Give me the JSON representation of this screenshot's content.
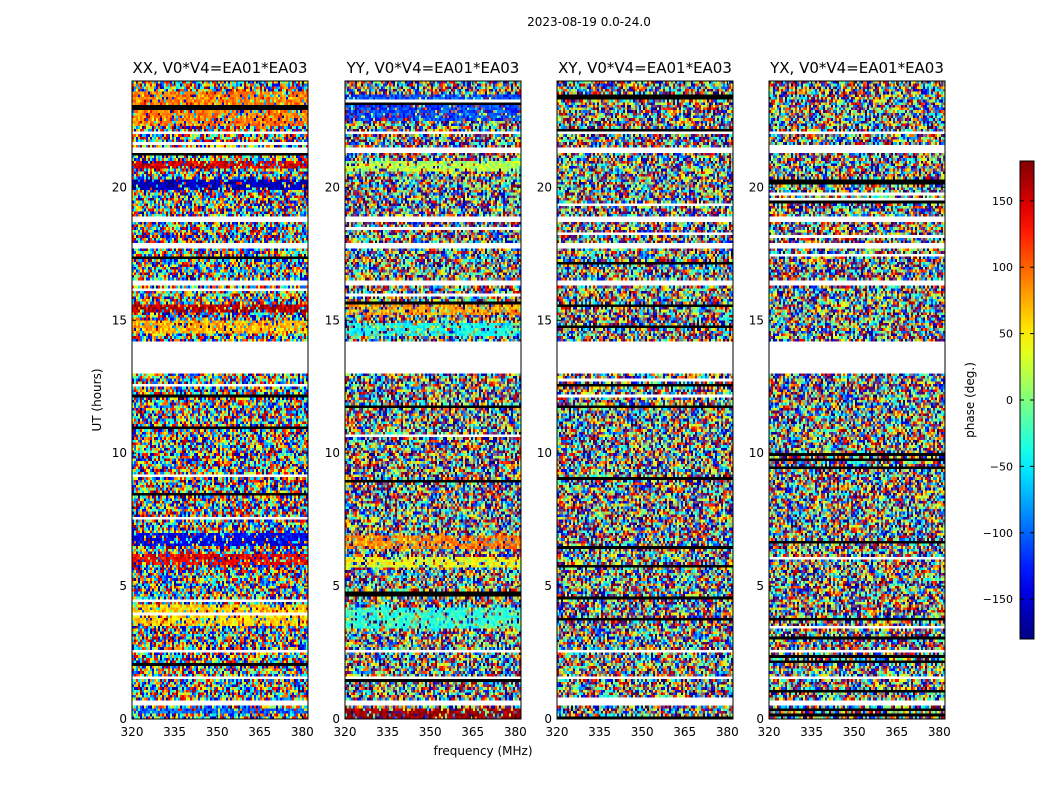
{
  "chart_data": {
    "type": "heatmap",
    "suptitle": "2023-08-19 0.0-24.0",
    "xlabel": "frequency (MHz)",
    "ylabel": "UT (hours)",
    "xlim": [
      320,
      382
    ],
    "ylim": [
      0,
      24
    ],
    "xticks": [
      "320",
      "335",
      "350",
      "365",
      "380"
    ],
    "yticks": [
      "0",
      "5",
      "10",
      "15",
      "20"
    ],
    "panels": [
      {
        "title": "XX, V0*V4=EA01*EA03",
        "polarization": "XX",
        "coherent_bands": [
          {
            "t0": 0.15,
            "t1": 0.45,
            "phase": -100
          },
          {
            "t0": 3.5,
            "t1": 4.3,
            "phase": 60
          },
          {
            "t0": 5.8,
            "t1": 6.2,
            "phase": 140
          },
          {
            "t0": 6.5,
            "t1": 6.95,
            "phase": -140
          },
          {
            "t0": 14.5,
            "t1": 15.0,
            "phase": 70
          },
          {
            "t0": 15.3,
            "t1": 15.6,
            "phase": 160
          },
          {
            "t0": 19.9,
            "t1": 20.3,
            "phase": -160
          },
          {
            "t0": 20.7,
            "t1": 21.0,
            "phase": 150
          },
          {
            "t0": 22.3,
            "t1": 23.6,
            "phase": 90
          }
        ]
      },
      {
        "title": "YY, V0*V4=EA01*EA03",
        "polarization": "YY",
        "coherent_bands": [
          {
            "t0": 0.05,
            "t1": 0.4,
            "phase": 170
          },
          {
            "t0": 3.4,
            "t1": 4.2,
            "phase": -30
          },
          {
            "t0": 5.7,
            "t1": 6.1,
            "phase": 40
          },
          {
            "t0": 6.4,
            "t1": 6.9,
            "phase": 90
          },
          {
            "t0": 14.4,
            "t1": 14.9,
            "phase": -40
          },
          {
            "t0": 15.2,
            "t1": 15.6,
            "phase": 80
          },
          {
            "t0": 20.6,
            "t1": 21.0,
            "phase": 20
          },
          {
            "t0": 22.5,
            "t1": 23.5,
            "phase": -110
          }
        ]
      },
      {
        "title": "XY, V0*V4=EA01*EA03",
        "polarization": "XY",
        "coherent_bands": []
      },
      {
        "title": "YX, V0*V4=EA01*EA03",
        "polarization": "YX",
        "coherent_bands": []
      }
    ],
    "blank_gaps_hours": [
      [
        0.5,
        0.65
      ],
      [
        1.45,
        1.6
      ],
      [
        2.5,
        2.65
      ],
      [
        13.0,
        14.2
      ],
      [
        16.3,
        16.45
      ],
      [
        17.7,
        17.85
      ],
      [
        18.7,
        18.85
      ],
      [
        21.3,
        21.45
      ],
      [
        22.0,
        22.1
      ]
    ],
    "colorbar": {
      "label": "phase (deg.)",
      "range": [
        -180,
        180
      ],
      "ticks": [
        "150",
        "100",
        "50",
        "0",
        "−50",
        "−100",
        "−150"
      ],
      "tick_values": [
        150,
        100,
        50,
        0,
        -50,
        -100,
        -150
      ],
      "colormap": "jet"
    }
  }
}
